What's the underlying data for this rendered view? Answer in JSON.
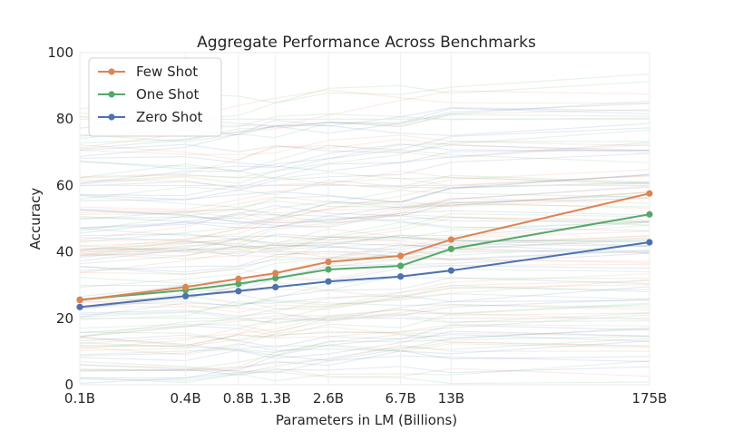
{
  "chart_data": {
    "type": "line",
    "title": "Aggregate Performance Across Benchmarks",
    "xlabel": "Parameters in LM (Billions)",
    "ylabel": "Accuracy",
    "x_categories": [
      "0.1B",
      "0.4B",
      "0.8B",
      "1.3B",
      "2.6B",
      "6.7B",
      "13B",
      "175B"
    ],
    "x": [
      0.1,
      0.4,
      0.8,
      1.3,
      2.6,
      6.7,
      13,
      175
    ],
    "x_scale": "log",
    "ylim": [
      0,
      100
    ],
    "yticks": [
      0,
      20,
      40,
      60,
      80,
      100
    ],
    "grid": true,
    "legend_position": "top-left",
    "series": [
      {
        "name": "Few Shot",
        "color": "#dd8452",
        "values": [
          25.5,
          29.4,
          31.9,
          33.6,
          37.0,
          38.8,
          43.7,
          57.6
        ]
      },
      {
        "name": "One Shot",
        "color": "#55a868",
        "values": [
          25.6,
          28.5,
          30.4,
          32.1,
          34.7,
          35.8,
          40.9,
          51.3
        ]
      },
      {
        "name": "Zero Shot",
        "color": "#4c72b0",
        "values": [
          23.4,
          26.7,
          28.2,
          29.4,
          31.1,
          32.6,
          34.4,
          42.9
        ]
      }
    ]
  }
}
